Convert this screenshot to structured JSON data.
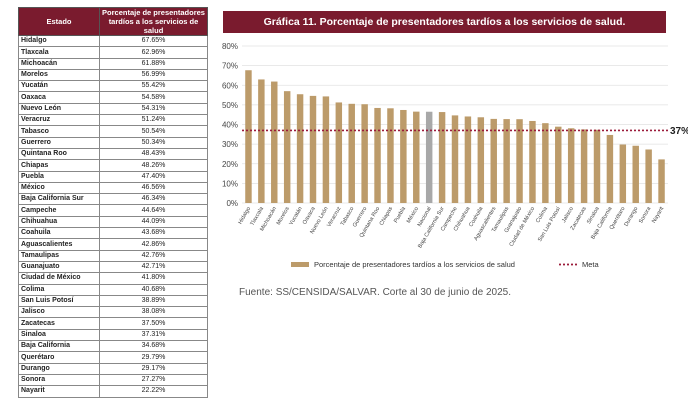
{
  "table": {
    "headers": [
      "Estado",
      "Porcentaje de presentadores tardíos a los servicios de salud"
    ],
    "rows": [
      [
        "Hidalgo",
        "67.65%"
      ],
      [
        "Tlaxcala",
        "62.96%"
      ],
      [
        "Michoacán",
        "61.88%"
      ],
      [
        "Morelos",
        "56.99%"
      ],
      [
        "Yucatán",
        "55.42%"
      ],
      [
        "Oaxaca",
        "54.58%"
      ],
      [
        "Nuevo León",
        "54.31%"
      ],
      [
        "Veracruz",
        "51.24%"
      ],
      [
        "Tabasco",
        "50.54%"
      ],
      [
        "Guerrero",
        "50.34%"
      ],
      [
        "Quintana Roo",
        "48.43%"
      ],
      [
        "Chiapas",
        "48.26%"
      ],
      [
        "Puebla",
        "47.40%"
      ],
      [
        "México",
        "46.56%"
      ],
      [
        "Baja California Sur",
        "46.34%"
      ],
      [
        "Campeche",
        "44.64%"
      ],
      [
        "Chihuahua",
        "44.09%"
      ],
      [
        "Coahuila",
        "43.68%"
      ],
      [
        "Aguascalientes",
        "42.86%"
      ],
      [
        "Tamaulipas",
        "42.76%"
      ],
      [
        "Guanajuato",
        "42.71%"
      ],
      [
        "Ciudad de México",
        "41.80%"
      ],
      [
        "Colima",
        "40.68%"
      ],
      [
        "San Luis Potosí",
        "38.89%"
      ],
      [
        "Jalisco",
        "38.08%"
      ],
      [
        "Zacatecas",
        "37.50%"
      ],
      [
        "Sinaloa",
        "37.31%"
      ],
      [
        "Baja California",
        "34.68%"
      ],
      [
        "Querétaro",
        "29.79%"
      ],
      [
        "Durango",
        "29.17%"
      ],
      [
        "Sonora",
        "27.27%"
      ],
      [
        "Nayarit",
        "22.22%"
      ]
    ]
  },
  "chart_data": {
    "type": "bar",
    "title": "Gráfica 11. Porcentaje de presentadores tardíos a los servicios de salud.",
    "categories": [
      "Hidalgo",
      "Tlaxcala",
      "Michoacán",
      "Morelos",
      "Yucatán",
      "Oaxaca",
      "Nuevo León",
      "Veracruz",
      "Tabasco",
      "Guerrero",
      "Quintana Roo",
      "Chiapas",
      "Puebla",
      "México",
      "Nacional",
      "Baja California Sur",
      "Campeche",
      "Chihuahua",
      "Coahuila",
      "Aguascalientes",
      "Tamaulipas",
      "Guanajuato",
      "Ciudad de México",
      "Colima",
      "San Luis Potosí",
      "Jalisco",
      "Zacatecas",
      "Sinaloa",
      "Baja California",
      "Querétaro",
      "Durango",
      "Sonora",
      "Nayarit"
    ],
    "series": [
      {
        "name": "Porcentaje de presentadores tardíos a los servicios de salud",
        "values": [
          67.65,
          62.96,
          61.88,
          56.99,
          55.42,
          54.58,
          54.31,
          51.24,
          50.54,
          50.34,
          48.43,
          48.26,
          47.4,
          46.56,
          46.5,
          46.34,
          44.64,
          44.09,
          43.68,
          42.86,
          42.76,
          42.71,
          41.8,
          40.68,
          38.89,
          38.08,
          37.5,
          37.31,
          34.68,
          29.79,
          29.17,
          27.27,
          22.22
        ]
      }
    ],
    "highlight_category": "Nacional",
    "meta": {
      "name": "Meta",
      "value": 37,
      "label": "37%"
    },
    "yticks": [
      "0%",
      "10%",
      "20%",
      "30%",
      "40%",
      "50%",
      "60%",
      "70%",
      "80%"
    ],
    "ylim": [
      0,
      80
    ],
    "colors": {
      "bar": "#bc9b6a",
      "highlight": "#a8a8a8",
      "meta": "#9b1b3a",
      "title_bg": "#7a1b2e"
    },
    "grid": true,
    "legend": "bottom"
  },
  "source": "Fuente: SS/CENSIDA/SALVAR. Corte al 30 de junio de 2025."
}
